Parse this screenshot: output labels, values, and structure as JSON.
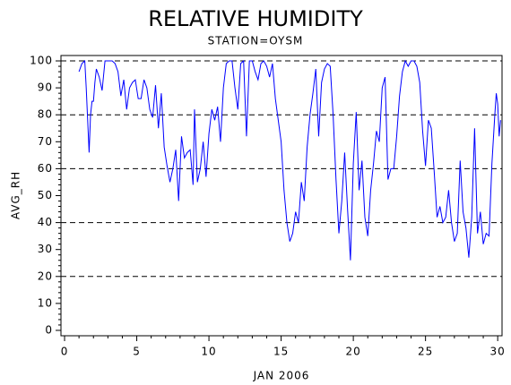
{
  "chart_data": {
    "type": "line",
    "title": "RELATIVE HUMIDITY",
    "subtitle": "STATION=OYSM",
    "x_label": "JAN 2006",
    "y_label": "AVG_RH",
    "color": "#0000ff",
    "x": [
      1.0,
      1.2,
      1.4,
      1.5,
      1.6,
      1.7,
      1.8,
      1.9,
      2.0,
      2.1,
      2.2,
      2.4,
      2.6,
      2.8,
      3.0,
      3.3,
      3.5,
      3.7,
      3.9,
      4.1,
      4.3,
      4.5,
      4.7,
      4.9,
      5.1,
      5.3,
      5.5,
      5.7,
      5.9,
      6.1,
      6.3,
      6.5,
      6.7,
      6.9,
      7.1,
      7.3,
      7.5,
      7.7,
      7.9,
      8.1,
      8.3,
      8.5,
      8.7,
      8.9,
      9.0,
      9.2,
      9.4,
      9.6,
      9.8,
      10.0,
      10.2,
      10.4,
      10.6,
      10.8,
      11.0,
      11.2,
      11.4,
      11.6,
      11.8,
      12.0,
      12.2,
      12.4,
      12.6,
      12.8,
      13.0,
      13.2,
      13.4,
      13.6,
      13.8,
      14.0,
      14.2,
      14.4,
      14.6,
      14.8,
      15.0,
      15.2,
      15.4,
      15.6,
      15.8,
      16.0,
      16.2,
      16.4,
      16.6,
      16.8,
      17.0,
      17.2,
      17.4,
      17.6,
      17.8,
      18.0,
      18.2,
      18.4,
      18.6,
      18.8,
      19.0,
      19.2,
      19.4,
      19.6,
      19.8,
      20.0,
      20.2,
      20.4,
      20.6,
      20.8,
      21.0,
      21.2,
      21.4,
      21.6,
      21.8,
      22.0,
      22.2,
      22.4,
      22.6,
      22.8,
      23.0,
      23.2,
      23.4,
      23.6,
      23.8,
      24.0,
      24.2,
      24.4,
      24.6,
      24.8,
      25.0,
      25.2,
      25.4,
      25.6,
      25.8,
      26.0,
      26.2,
      26.4,
      26.6,
      26.8,
      27.0,
      27.2,
      27.4,
      27.6,
      27.8,
      28.0,
      28.2,
      28.4,
      28.6,
      28.8,
      29.0,
      29.2,
      29.4,
      29.6,
      29.8,
      29.9,
      30.0,
      30.1,
      30.2
    ],
    "values": [
      96,
      99,
      100,
      90,
      78,
      66,
      80,
      85,
      85,
      92,
      97,
      94,
      89,
      100,
      100,
      100,
      99,
      96,
      87,
      93,
      82,
      90,
      92,
      93,
      86,
      86,
      93,
      90,
      82,
      79,
      91,
      75,
      88,
      68,
      61,
      55,
      60,
      67,
      48,
      72,
      64,
      66,
      67,
      54,
      82,
      55,
      60,
      70,
      57,
      73,
      82,
      78,
      83,
      70,
      90,
      99,
      100,
      100,
      90,
      82,
      99,
      100,
      72,
      100,
      100,
      96,
      93,
      99,
      100,
      98,
      94,
      99,
      86,
      78,
      70,
      52,
      40,
      33,
      36,
      44,
      40,
      55,
      48,
      68,
      80,
      88,
      97,
      72,
      92,
      97,
      99,
      98,
      80,
      56,
      36,
      48,
      66,
      45,
      26,
      62,
      81,
      52,
      63,
      42,
      35,
      52,
      62,
      74,
      70,
      90,
      94,
      56,
      60,
      60,
      72,
      87,
      96,
      100,
      98,
      100,
      100,
      98,
      92,
      74,
      61,
      78,
      75,
      59,
      42,
      46,
      40,
      42,
      52,
      40,
      33,
      36,
      63,
      44,
      38,
      27,
      42,
      75,
      36,
      44,
      32,
      36,
      35,
      62,
      80,
      88,
      84,
      72,
      78
    ],
    "xlim": [
      -0.25,
      30.3
    ],
    "xticks": [
      0,
      5,
      10,
      15,
      20,
      25,
      30
    ],
    "ylim": [
      -2,
      102
    ],
    "yticks": [
      0,
      10,
      20,
      30,
      40,
      50,
      60,
      70,
      80,
      90,
      100
    ],
    "grid_lines": [
      20,
      40,
      60,
      80,
      100
    ]
  }
}
